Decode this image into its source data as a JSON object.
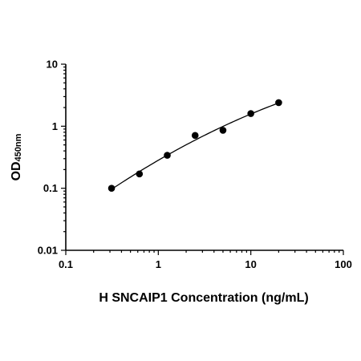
{
  "chart_data": {
    "type": "scatter",
    "xscale": "log",
    "yscale": "log",
    "xlim": [
      0.1,
      100
    ],
    "ylim": [
      0.01,
      10
    ],
    "xlabel": "H SNCAIP1 Concentration (ng/mL)",
    "ylabel": {
      "main": "OD",
      "sub": "450nm"
    },
    "x_ticks": [
      {
        "value": 0.1,
        "label": "0.1"
      },
      {
        "value": 1,
        "label": "1"
      },
      {
        "value": 10,
        "label": "10"
      },
      {
        "value": 100,
        "label": "100"
      }
    ],
    "y_ticks": [
      {
        "value": 0.01,
        "label": "0.01"
      },
      {
        "value": 0.1,
        "label": "0.1"
      },
      {
        "value": 1,
        "label": "1"
      },
      {
        "value": 10,
        "label": "10"
      }
    ],
    "points": [
      {
        "x": 0.3125,
        "y": 0.1
      },
      {
        "x": 0.625,
        "y": 0.17
      },
      {
        "x": 1.25,
        "y": 0.34
      },
      {
        "x": 2.5,
        "y": 0.71
      },
      {
        "x": 5,
        "y": 0.86
      },
      {
        "x": 10,
        "y": 1.6
      },
      {
        "x": 20,
        "y": 2.4
      }
    ],
    "fit_curve": true,
    "grid": false,
    "colors": {
      "marker": "#000000",
      "line": "#000000",
      "axis": "#000000"
    }
  }
}
